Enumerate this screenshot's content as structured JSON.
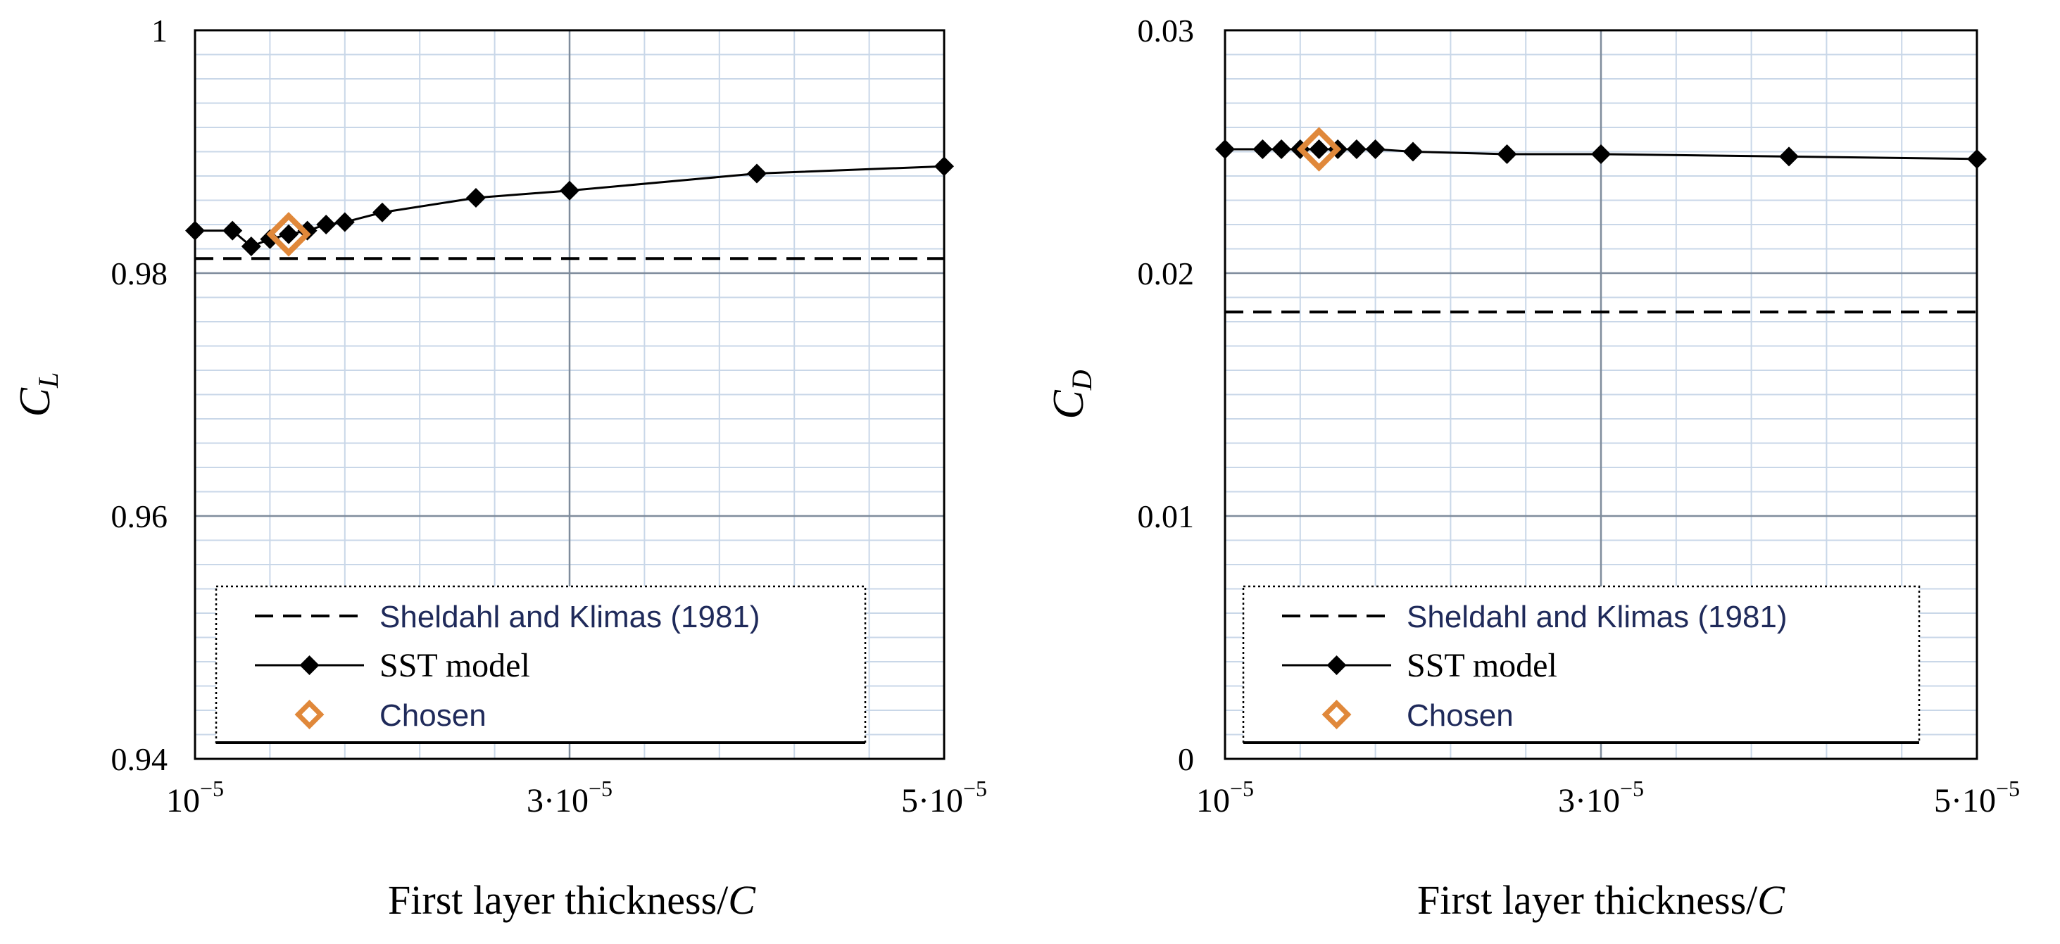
{
  "colors": {
    "background": "#ffffff",
    "grid_minor": "#c9d7e8",
    "grid_major": "#7f8c9c",
    "frame": "#000000",
    "series": "#000000",
    "chosen": "#e0883a",
    "legend_sans_text": "#1f2a5a"
  },
  "chart_data": [
    {
      "type": "line",
      "name": "lift",
      "ylabel_main": "C",
      "ylabel_sub": "L",
      "xlabel_main": "First layer thickness/",
      "xlabel_var": "C",
      "xlim": [
        1e-05,
        5e-05
      ],
      "ylim": [
        0.94,
        1.0
      ],
      "xtick_labels": [
        {
          "value": 1e-05,
          "base": "10",
          "exp": "−5"
        },
        {
          "value": 3e-05,
          "base": "3·10",
          "exp": "−5"
        },
        {
          "value": 5e-05,
          "base": "5·10",
          "exp": "−5"
        }
      ],
      "yticks": [
        {
          "value": 1.0,
          "label": "1"
        },
        {
          "value": 0.98,
          "label": "0.98"
        },
        {
          "value": 0.96,
          "label": "0.96"
        },
        {
          "value": 0.94,
          "label": "0.94"
        }
      ],
      "series": [
        {
          "name": "Sheldahl and Klimas (1981)",
          "style": "dashed",
          "y": 0.9812
        },
        {
          "name": "SST model",
          "style": "line-diamond",
          "x": [
            1e-05,
            1.2e-05,
            1.3e-05,
            1.4e-05,
            1.5e-05,
            1.6e-05,
            1.7e-05,
            1.8e-05,
            2e-05,
            2.5e-05,
            3e-05,
            4e-05,
            5e-05
          ],
          "values": [
            0.9835,
            0.9835,
            0.9822,
            0.9828,
            0.9832,
            0.9835,
            0.984,
            0.9842,
            0.985,
            0.9862,
            0.9868,
            0.9882,
            0.9888
          ]
        },
        {
          "name": "Chosen",
          "style": "open-diamond",
          "x": [
            1.5e-05
          ],
          "values": [
            0.9832
          ]
        }
      ],
      "legend": [
        {
          "label": "Sheldahl and Klimas (1981)",
          "font": "sans"
        },
        {
          "label": "SST model",
          "font": "serif"
        },
        {
          "label": "Chosen",
          "font": "sans"
        }
      ]
    },
    {
      "type": "line",
      "name": "drag",
      "ylabel_main": "C",
      "ylabel_sub": "D",
      "xlabel_main": "First layer thickness/",
      "xlabel_var": "C",
      "xlim": [
        1e-05,
        5e-05
      ],
      "ylim": [
        0,
        0.03
      ],
      "xtick_labels": [
        {
          "value": 1e-05,
          "base": "10",
          "exp": "−5"
        },
        {
          "value": 3e-05,
          "base": "3·10",
          "exp": "−5"
        },
        {
          "value": 5e-05,
          "base": "5·10",
          "exp": "−5"
        }
      ],
      "yticks": [
        {
          "value": 0.03,
          "label": "0.03"
        },
        {
          "value": 0.02,
          "label": "0.02"
        },
        {
          "value": 0.01,
          "label": "0.01"
        },
        {
          "value": 0.0,
          "label": "0"
        }
      ],
      "series": [
        {
          "name": "Sheldahl and Klimas (1981)",
          "style": "dashed",
          "y": 0.0184
        },
        {
          "name": "SST model",
          "style": "line-diamond",
          "x": [
            1e-05,
            1.2e-05,
            1.3e-05,
            1.4e-05,
            1.5e-05,
            1.6e-05,
            1.7e-05,
            1.8e-05,
            2e-05,
            2.5e-05,
            3e-05,
            4e-05,
            5e-05
          ],
          "values": [
            0.0251,
            0.0251,
            0.0251,
            0.0251,
            0.0251,
            0.0251,
            0.0251,
            0.0251,
            0.025,
            0.0249,
            0.0249,
            0.0248,
            0.0247
          ]
        },
        {
          "name": "Chosen",
          "style": "open-diamond",
          "x": [
            1.5e-05
          ],
          "values": [
            0.0251
          ]
        }
      ],
      "legend": [
        {
          "label": "Sheldahl and Klimas (1981)",
          "font": "sans"
        },
        {
          "label": "SST model",
          "font": "serif"
        },
        {
          "label": "Chosen",
          "font": "sans"
        }
      ]
    }
  ]
}
